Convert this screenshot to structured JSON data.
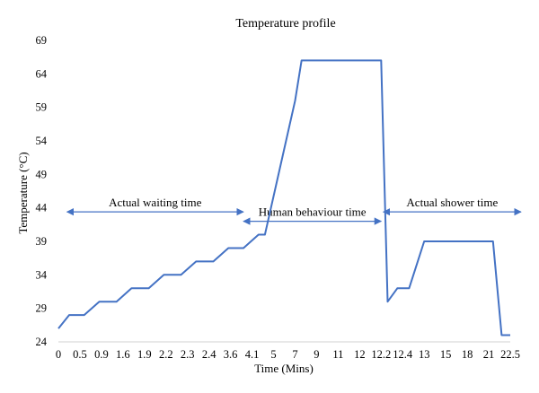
{
  "chart_data": {
    "type": "line",
    "title": "Temperature profile",
    "xlabel": "Time (Mins)",
    "ylabel": "Temperature (°C)",
    "ylim": [
      24,
      69
    ],
    "yticks": [
      24,
      29,
      34,
      39,
      44,
      49,
      54,
      59,
      64,
      69
    ],
    "xtick_labels": [
      "0",
      "0.5",
      "0.9",
      "1.6",
      "1.9",
      "2.2",
      "2.3",
      "2.4",
      "3.6",
      "4.1",
      "5",
      "7",
      "9",
      "11",
      "12",
      "12.2",
      "12.4",
      "13",
      "15",
      "18",
      "21",
      "22.5"
    ],
    "grid": false,
    "line_color": "#4472C4",
    "series": [
      {
        "x_index": [
          0,
          0.5,
          1.2,
          1.9,
          2.7,
          3.4,
          4.2,
          4.9,
          5.7,
          6.4,
          7.2,
          7.9,
          8.6,
          9.3,
          9.6,
          10.3,
          11.0,
          11.3,
          15.0,
          15.3,
          15.75,
          16.3,
          16.6,
          17.0,
          17.6,
          20.2,
          20.6,
          21.0
        ],
        "values": [
          26,
          28,
          28,
          30,
          30,
          32,
          32,
          34,
          34,
          36,
          36,
          38,
          38,
          40,
          40,
          50,
          60,
          66,
          66,
          30,
          32,
          32,
          35,
          39,
          39,
          39,
          25,
          25
        ]
      }
    ],
    "annotations": [
      {
        "label": "Actual waiting time",
        "from_index": 0.4,
        "to_index": 8.6,
        "y": 43.4
      },
      {
        "label": "Human behaviour time",
        "from_index": 8.6,
        "to_index": 15.0,
        "y": 42.0
      },
      {
        "label": "Actual shower time",
        "from_index": 15.1,
        "to_index": 21.5,
        "y": 43.4
      }
    ]
  }
}
